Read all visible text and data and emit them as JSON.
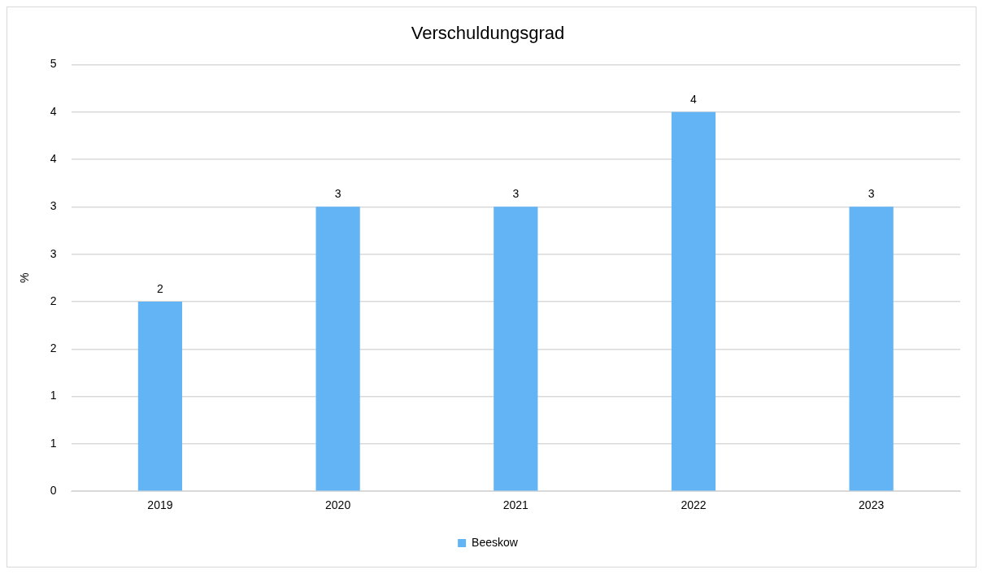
{
  "chart_data": {
    "type": "bar",
    "title": "Verschuldungsgrad",
    "ylabel": "%",
    "categories": [
      "2019",
      "2020",
      "2021",
      "2022",
      "2023"
    ],
    "series": [
      {
        "name": "Beeskow",
        "color": "#63b4f5",
        "values": [
          2,
          3,
          3,
          4,
          3
        ]
      }
    ],
    "ylim": [
      0,
      4.5
    ],
    "yticks": [
      0,
      {
        "value": 0.5,
        "label": "1"
      },
      1,
      {
        "value": 1.5,
        "label": "2"
      },
      2,
      {
        "value": 2.5,
        "label": "3"
      },
      3,
      {
        "value": 3.5,
        "label": "4"
      },
      4,
      {
        "value": 4.5,
        "label": "5"
      }
    ],
    "grid": "y",
    "legend": "bottom",
    "data_labels": true
  }
}
